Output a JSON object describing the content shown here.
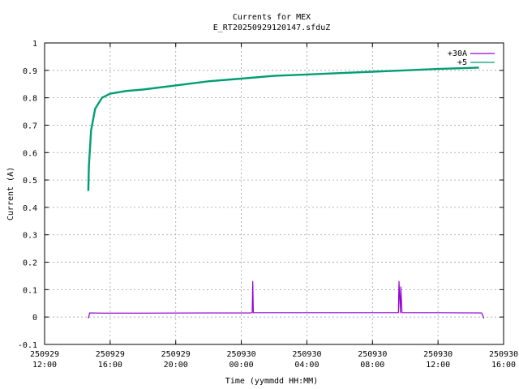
{
  "chart_data": {
    "type": "line",
    "title": "Currents for MEX",
    "subtitle": "E_RT20250929120147.sfduZ",
    "xlabel": "Time (yymmdd HH:MM)",
    "ylabel": "Current (A)",
    "xlim": [
      "2025-09-29 12:00",
      "2025-09-30 16:00"
    ],
    "ylim": [
      -0.1,
      1
    ],
    "grid": true,
    "legend_position": "top-right",
    "x_ticks": [
      {
        "date": "250929",
        "time": "12:00"
      },
      {
        "date": "250929",
        "time": "16:00"
      },
      {
        "date": "250929",
        "time": "20:00"
      },
      {
        "date": "250930",
        "time": "00:00"
      },
      {
        "date": "250930",
        "time": "04:00"
      },
      {
        "date": "250930",
        "time": "08:00"
      },
      {
        "date": "250930",
        "time": "12:00"
      },
      {
        "date": "250930",
        "time": "16:00"
      }
    ],
    "y_ticks": [
      "-0.1",
      "0",
      "0.1",
      "0.2",
      "0.3",
      "0.4",
      "0.5",
      "0.6",
      "0.7",
      "0.8",
      "0.9",
      "1"
    ],
    "series": [
      {
        "name": "+30A",
        "color": "#9400d3",
        "x": [
          "2025-09-29 14:40",
          "2025-09-29 14:45",
          "2025-09-29 15:30",
          "2025-09-29 18:00",
          "2025-09-29 22:00",
          "2025-09-30 00:30",
          "2025-09-30 00:40",
          "2025-09-30 00:42",
          "2025-09-30 00:44",
          "2025-09-30 03:00",
          "2025-09-30 06:00",
          "2025-09-30 09:30",
          "2025-09-30 09:35",
          "2025-09-30 09:37",
          "2025-09-30 09:42",
          "2025-09-30 09:44",
          "2025-09-30 09:48",
          "2025-09-30 12:00",
          "2025-09-30 14:40",
          "2025-09-30 14:48"
        ],
        "y": [
          -0.005,
          0.015,
          0.014,
          0.014,
          0.015,
          0.015,
          0.016,
          0.13,
          0.016,
          0.016,
          0.016,
          0.016,
          0.016,
          0.13,
          0.016,
          0.11,
          0.016,
          0.016,
          0.015,
          -0.005
        ]
      },
      {
        "name": "+5",
        "color": "#009e73",
        "x": [
          "2025-09-29 14:40",
          "2025-09-29 14:42",
          "2025-09-29 14:50",
          "2025-09-29 15:05",
          "2025-09-29 15:30",
          "2025-09-29 16:00",
          "2025-09-29 17:00",
          "2025-09-29 18:00",
          "2025-09-29 20:00",
          "2025-09-29 22:00",
          "2025-09-30 00:00",
          "2025-09-30 02:00",
          "2025-09-30 04:00",
          "2025-09-30 06:00",
          "2025-09-30 08:00",
          "2025-09-30 10:00",
          "2025-09-30 12:00",
          "2025-09-30 14:30"
        ],
        "y": [
          0.46,
          0.55,
          0.68,
          0.76,
          0.8,
          0.815,
          0.825,
          0.83,
          0.845,
          0.86,
          0.87,
          0.88,
          0.885,
          0.89,
          0.895,
          0.9,
          0.905,
          0.91
        ]
      }
    ]
  }
}
